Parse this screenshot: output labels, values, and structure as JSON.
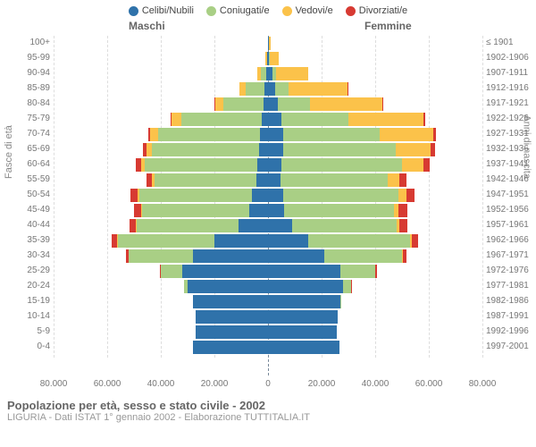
{
  "legend": [
    {
      "label": "Celibi/Nubili",
      "color": "#2f72aa"
    },
    {
      "label": "Coniugati/e",
      "color": "#a9cf85"
    },
    {
      "label": "Vedovi/e",
      "color": "#fbc24a"
    },
    {
      "label": "Divorziati/e",
      "color": "#d73a32"
    }
  ],
  "headers": {
    "male": "Maschi",
    "female": "Femmine"
  },
  "yaxis_left_title": "Fasce di età",
  "yaxis_right_title": "Anni di nascita",
  "title": "Popolazione per età, sesso e stato civile - 2002",
  "subtitle": "LIGURIA - Dati ISTAT 1° gennaio 2002 - Elaborazione TUTTITALIA.IT",
  "xmax": 80000,
  "xticks": [
    -80000,
    -60000,
    -40000,
    -20000,
    0,
    20000,
    40000,
    60000,
    80000
  ],
  "xtick_labels": [
    "80.000",
    "60.000",
    "40.000",
    "20.000",
    "0",
    "20.000",
    "40.000",
    "60.000",
    "80.000"
  ],
  "grid_x": [
    -80000,
    -60000,
    -40000,
    -20000,
    20000,
    40000,
    60000,
    80000
  ],
  "colors": {
    "celibi": "#2f72aa",
    "coniugati": "#a9cf85",
    "vedovi": "#fbc24a",
    "divorziati": "#d73a32",
    "grid": "#dddddd",
    "centerline": "#6b88a8"
  },
  "rows": [
    {
      "age": "100+",
      "birth": "≤ 1901",
      "m": [
        50,
        0,
        100,
        0
      ],
      "f": [
        200,
        0,
        900,
        0
      ]
    },
    {
      "age": "95-99",
      "birth": "1902-1906",
      "m": [
        200,
        200,
        600,
        0
      ],
      "f": [
        400,
        200,
        3500,
        0
      ]
    },
    {
      "age": "90-94",
      "birth": "1907-1911",
      "m": [
        600,
        2000,
        1500,
        0
      ],
      "f": [
        1500,
        1500,
        12000,
        0
      ]
    },
    {
      "age": "85-89",
      "birth": "1912-1916",
      "m": [
        1200,
        7000,
        2500,
        100
      ],
      "f": [
        2500,
        5000,
        22000,
        200
      ]
    },
    {
      "age": "80-84",
      "birth": "1917-1921",
      "m": [
        1800,
        15000,
        3000,
        200
      ],
      "f": [
        3500,
        12000,
        27000,
        400
      ]
    },
    {
      "age": "75-79",
      "birth": "1922-1926",
      "m": [
        2500,
        30000,
        3500,
        500
      ],
      "f": [
        5000,
        25000,
        28000,
        800
      ]
    },
    {
      "age": "70-74",
      "birth": "1927-1931",
      "m": [
        3000,
        38000,
        3000,
        800
      ],
      "f": [
        5500,
        36000,
        20000,
        1200
      ]
    },
    {
      "age": "65-69",
      "birth": "1932-1936",
      "m": [
        3500,
        40000,
        2000,
        1200
      ],
      "f": [
        5500,
        42000,
        13000,
        1800
      ]
    },
    {
      "age": "60-64",
      "birth": "1937-1941",
      "m": [
        4000,
        42000,
        1500,
        1800
      ],
      "f": [
        5000,
        45000,
        8000,
        2200
      ]
    },
    {
      "age": "55-59",
      "birth": "1942-1946",
      "m": [
        4500,
        38000,
        1000,
        2000
      ],
      "f": [
        4500,
        40000,
        4500,
        2500
      ]
    },
    {
      "age": "50-54",
      "birth": "1947-1951",
      "m": [
        6000,
        42000,
        800,
        2500
      ],
      "f": [
        5500,
        43000,
        3000,
        3000
      ]
    },
    {
      "age": "45-49",
      "birth": "1952-1956",
      "m": [
        7000,
        40000,
        500,
        2500
      ],
      "f": [
        6000,
        41000,
        1800,
        3200
      ]
    },
    {
      "age": "40-44",
      "birth": "1957-1961",
      "m": [
        11000,
        38000,
        300,
        2500
      ],
      "f": [
        9000,
        39000,
        1000,
        3000
      ]
    },
    {
      "age": "35-39",
      "birth": "1962-1966",
      "m": [
        20000,
        36000,
        200,
        2000
      ],
      "f": [
        15000,
        38000,
        500,
        2500
      ]
    },
    {
      "age": "30-34",
      "birth": "1967-1971",
      "m": [
        28000,
        24000,
        100,
        1000
      ],
      "f": [
        21000,
        29000,
        300,
        1500
      ]
    },
    {
      "age": "25-29",
      "birth": "1972-1976",
      "m": [
        32000,
        8000,
        0,
        300
      ],
      "f": [
        27000,
        13000,
        100,
        600
      ]
    },
    {
      "age": "20-24",
      "birth": "1977-1981",
      "m": [
        30000,
        1200,
        0,
        0
      ],
      "f": [
        28000,
        3000,
        0,
        100
      ]
    },
    {
      "age": "15-19",
      "birth": "1982-1986",
      "m": [
        28000,
        0,
        0,
        0
      ],
      "f": [
        27000,
        200,
        0,
        0
      ]
    },
    {
      "age": "10-14",
      "birth": "1987-1991",
      "m": [
        27000,
        0,
        0,
        0
      ],
      "f": [
        26000,
        0,
        0,
        0
      ]
    },
    {
      "age": "5-9",
      "birth": "1992-1996",
      "m": [
        27000,
        0,
        0,
        0
      ],
      "f": [
        25500,
        0,
        0,
        0
      ]
    },
    {
      "age": "0-4",
      "birth": "1997-2001",
      "m": [
        28000,
        0,
        0,
        0
      ],
      "f": [
        26500,
        0,
        0,
        0
      ]
    }
  ]
}
